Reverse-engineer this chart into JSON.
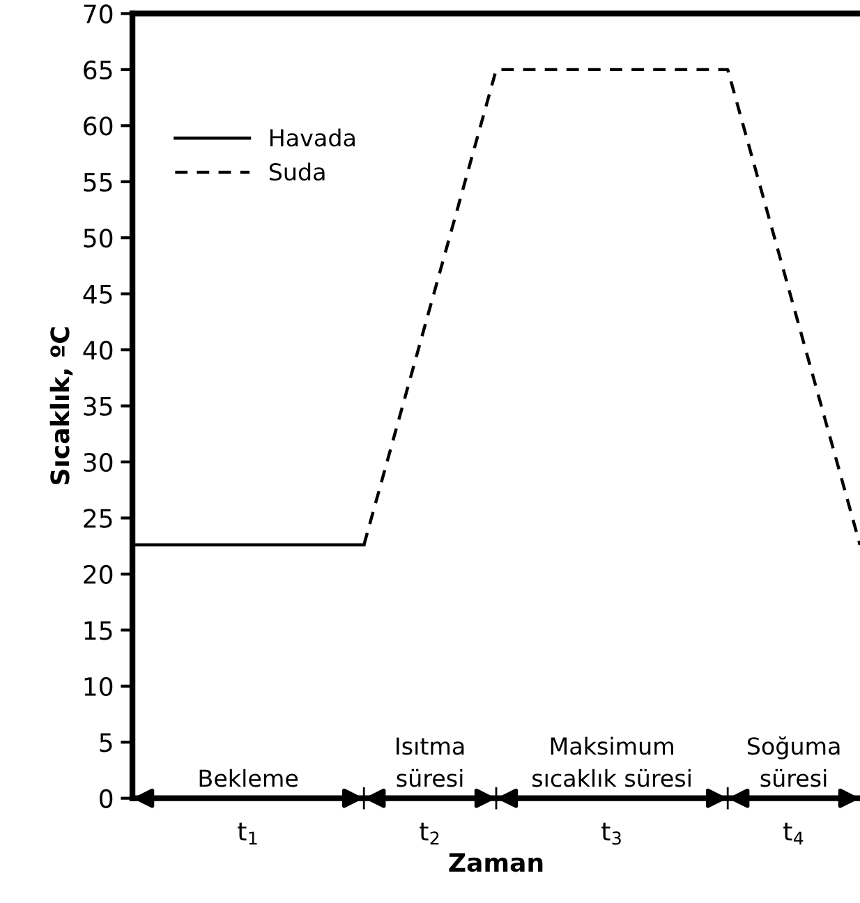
{
  "chart_data": {
    "type": "line",
    "xlabel": "Zaman",
    "ylabel": "Sıcaklık, ºC",
    "categories": [
      null,
      null,
      null,
      null,
      null,
      null,
      null,
      null,
      null,
      null,
      null,
      null,
      null,
      null,
      null,
      null,
      null,
      null,
      null,
      null,
      null,
      null,
      null
    ],
    "series": [
      {
        "name": "Havada",
        "color": "#000000",
        "line_style": "solid",
        "values": [
          22.6,
          22.6,
          22.6,
          22.6,
          22.6,
          22.6,
          22.6,
          22.6,
          null,
          null,
          null,
          null,
          null,
          null,
          null,
          null,
          null,
          null,
          null,
          null,
          null,
          null,
          null
        ]
      },
      {
        "name": "Suda",
        "color": "#000000",
        "line_style": "dashed",
        "values": [
          null,
          null,
          null,
          null,
          null,
          null,
          null,
          22.6,
          33.2,
          43.8,
          54.4,
          65,
          65,
          65,
          65,
          65,
          65,
          65,
          65,
          54.4,
          43.8,
          33.2,
          22.6
        ]
      }
    ],
    "ylim": [
      0,
      70
    ],
    "yticks": [
      0,
      5,
      10,
      15,
      20,
      25,
      30,
      35,
      40,
      45,
      50,
      55,
      60,
      65,
      70
    ],
    "annotations": [
      "Bekleme",
      "Isıtma\nsüresi",
      "Maksimum\nsıcaklık süresi",
      "Soğuma\nsüresi",
      "t$_{1}$",
      "t$_{2}$",
      "t$_{3}$",
      "t$_{4}$"
    ],
    "legend": "top left",
    "grid": false,
    "marker": "none"
  }
}
